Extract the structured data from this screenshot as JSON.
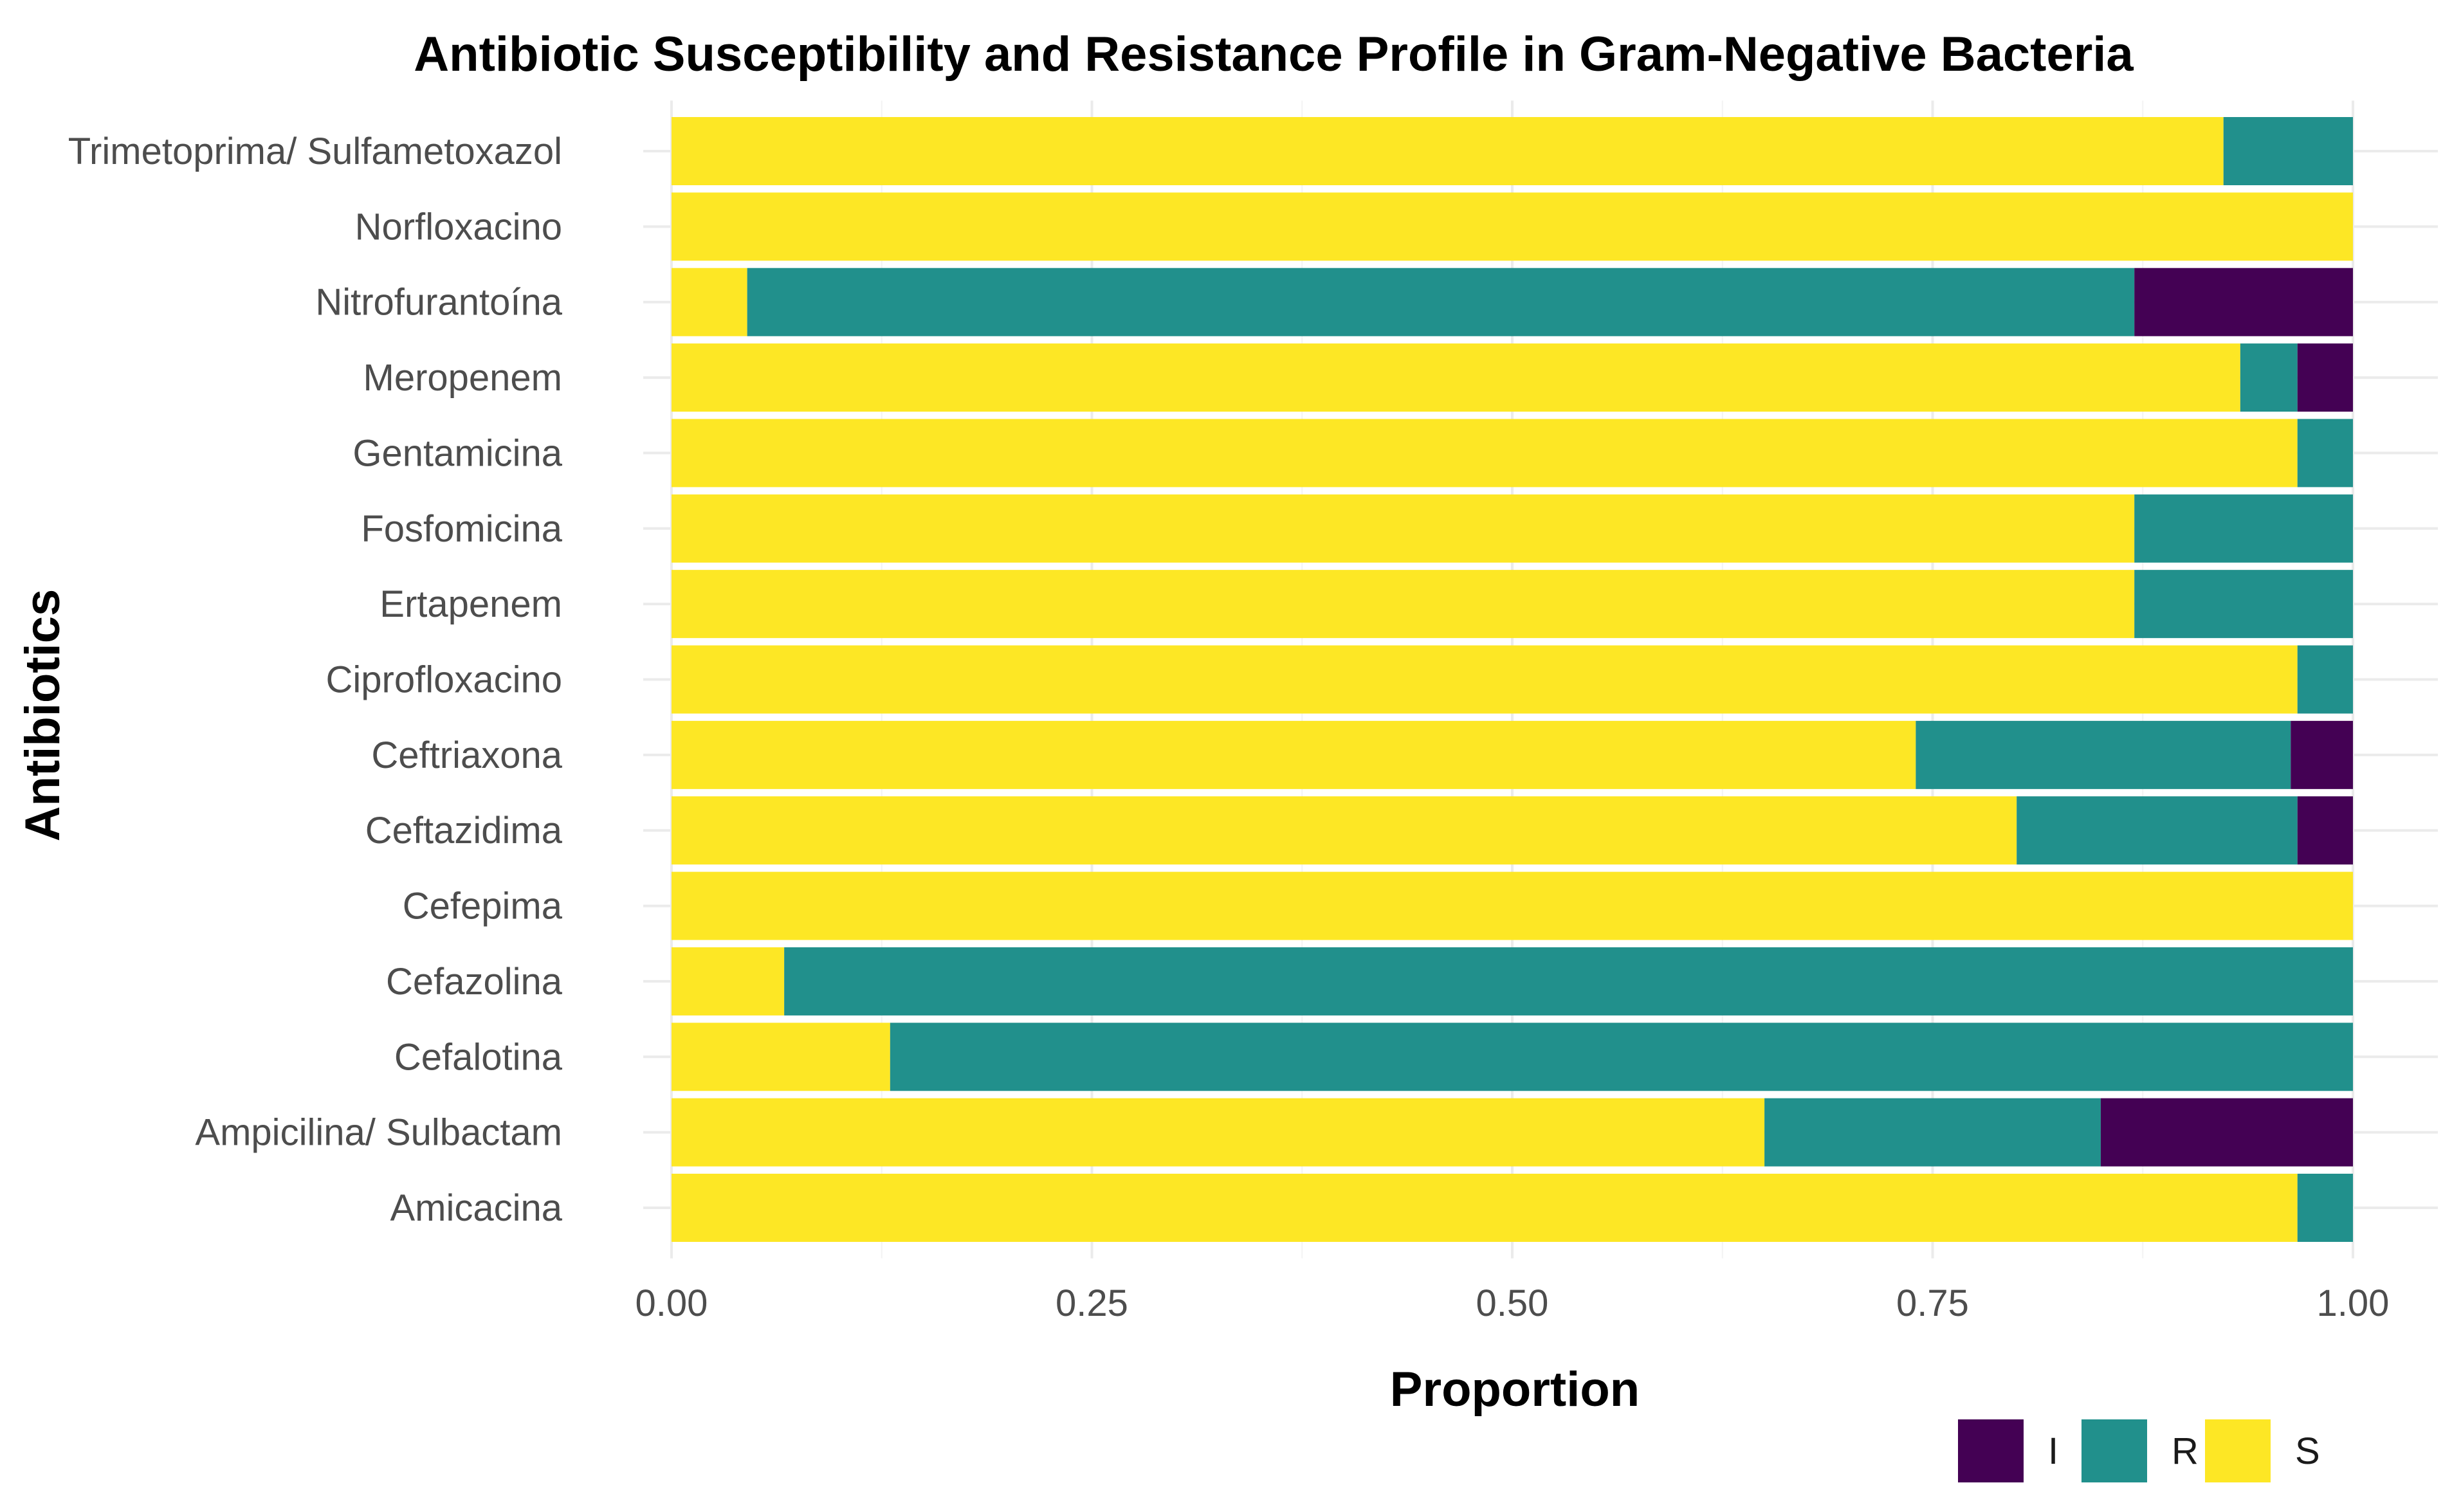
{
  "chart_data": {
    "type": "bar",
    "orientation": "horizontal",
    "stacked": true,
    "title": "Antibiotic Susceptibility and Resistance Profile in Gram-Negative Bacteria",
    "xlabel": "Proportion",
    "ylabel": "Antibiotics",
    "xlim": [
      0,
      1
    ],
    "x_ticks": [
      "0.00",
      "0.25",
      "0.50",
      "0.75",
      "1.00"
    ],
    "grid": true,
    "legend_position": "bottom-right",
    "categories": [
      "Amicacina",
      "Ampicilina/ Sulbactam",
      "Cefalotina",
      "Cefazolina",
      "Cefepima",
      "Ceftazidima",
      "Ceftriaxona",
      "Ciprofloxacino",
      "Ertapenem",
      "Fosfomicina",
      "Gentamicina",
      "Meropenem",
      "Nitrofurantoína",
      "Norfloxacino",
      "Trimetoprima/ Sulfametoxazol"
    ],
    "series": [
      {
        "name": "S",
        "color": "#FDE725",
        "values": [
          0.967,
          0.65,
          0.13,
          0.067,
          1.0,
          0.8,
          0.74,
          0.967,
          0.87,
          0.87,
          0.967,
          0.933,
          0.045,
          1.0,
          0.923
        ]
      },
      {
        "name": "R",
        "color": "#21908C",
        "values": [
          0.033,
          0.2,
          0.87,
          0.933,
          0.0,
          0.167,
          0.223,
          0.033,
          0.13,
          0.13,
          0.033,
          0.034,
          0.825,
          0.0,
          0.077
        ]
      },
      {
        "name": "I",
        "color": "#440154",
        "values": [
          0.0,
          0.15,
          0.0,
          0.0,
          0.0,
          0.033,
          0.037,
          0.0,
          0.0,
          0.0,
          0.0,
          0.033,
          0.13,
          0.0,
          0.0
        ]
      }
    ],
    "legend_order": [
      "I",
      "R",
      "S"
    ]
  }
}
